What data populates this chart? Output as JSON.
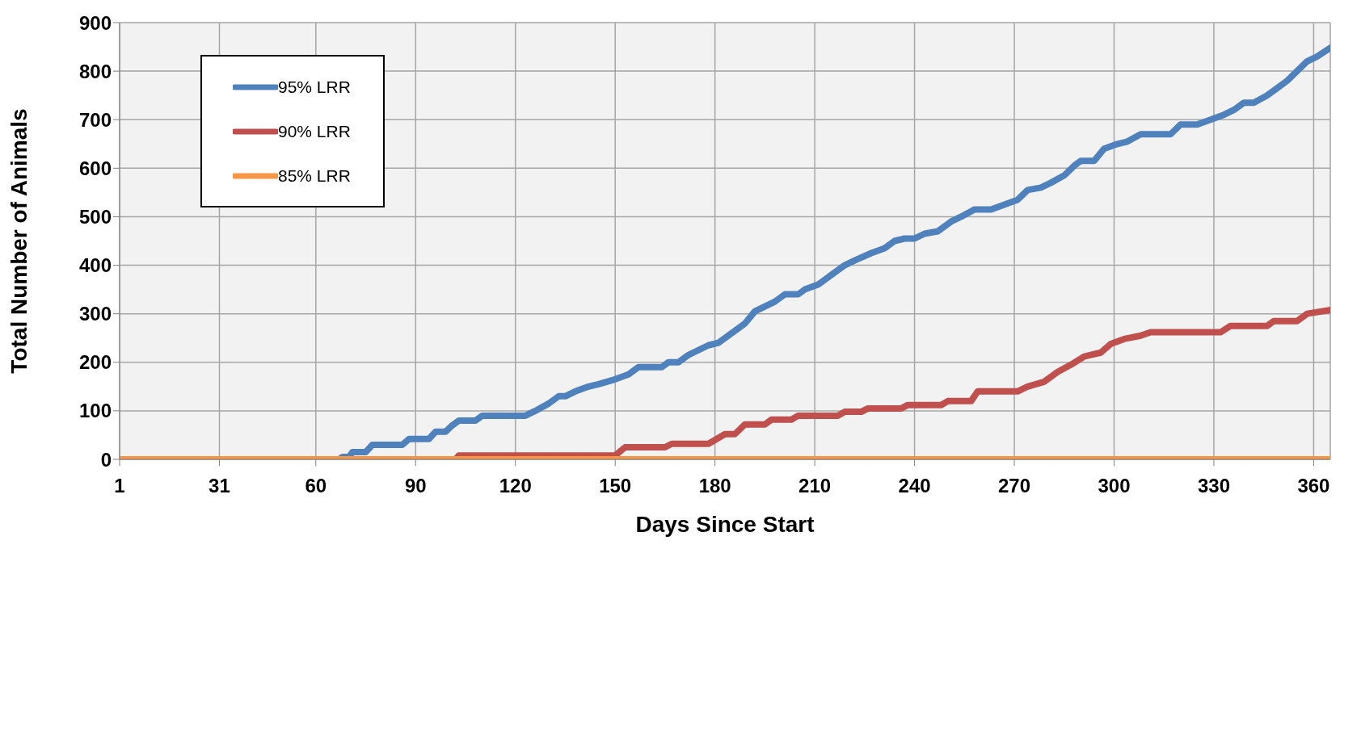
{
  "chart_data": {
    "type": "line",
    "xlabel": "Days Since Start",
    "ylabel": "Total Number of Animals",
    "xlim": [
      1,
      365
    ],
    "xticks": [
      1,
      31,
      60,
      90,
      120,
      150,
      180,
      210,
      240,
      270,
      300,
      330,
      360
    ],
    "ylim": [
      0,
      900
    ],
    "yticks": [
      0,
      100,
      200,
      300,
      400,
      500,
      600,
      700,
      800,
      900
    ],
    "grid": true,
    "legend": "top left",
    "marker": "none",
    "line_style": "solid",
    "series": [
      {
        "name": "95% LRR",
        "color": "#4f81bd",
        "x": [
          1,
          67,
          68,
          70,
          71,
          75,
          77,
          79,
          86,
          88,
          94,
          96,
          97,
          99,
          101,
          103,
          108,
          110,
          123,
          126,
          130,
          133,
          135,
          138,
          142,
          145,
          150,
          154,
          157,
          164,
          166,
          169,
          172,
          175,
          178,
          181,
          184,
          186,
          189,
          192,
          195,
          198,
          201,
          205,
          207,
          211,
          215,
          219,
          222,
          227,
          231,
          234,
          237,
          240,
          243,
          247,
          251,
          254,
          258,
          263,
          267,
          271,
          274,
          278,
          281,
          285,
          288,
          290,
          294,
          297,
          301,
          304,
          308,
          317,
          320,
          325,
          329,
          333,
          336,
          339,
          342,
          346,
          349,
          352,
          355,
          358,
          361,
          365
        ],
        "values": [
          0,
          0,
          5,
          5,
          15,
          15,
          30,
          30,
          30,
          42,
          42,
          57,
          57,
          57,
          70,
          80,
          80,
          90,
          90,
          100,
          115,
          130,
          130,
          140,
          150,
          155,
          165,
          175,
          190,
          190,
          200,
          200,
          215,
          225,
          235,
          240,
          255,
          265,
          280,
          305,
          315,
          325,
          340,
          340,
          350,
          360,
          380,
          400,
          410,
          425,
          435,
          450,
          455,
          455,
          465,
          470,
          490,
          500,
          515,
          515,
          525,
          535,
          555,
          560,
          570,
          585,
          605,
          615,
          615,
          640,
          650,
          655,
          670,
          670,
          690,
          690,
          700,
          710,
          720,
          735,
          735,
          750,
          765,
          780,
          800,
          820,
          830,
          848
        ]
      },
      {
        "name": "90% LRR",
        "color": "#c0504d",
        "x": [
          1,
          102,
          103,
          150,
          153,
          165,
          167,
          178,
          180,
          183,
          186,
          189,
          195,
          197,
          203,
          205,
          217,
          219,
          224,
          226,
          236,
          238,
          248,
          250,
          257,
          259,
          271,
          274,
          279,
          283,
          287,
          291,
          296,
          299,
          303,
          308,
          311,
          332,
          335,
          346,
          348,
          355,
          358,
          365
        ],
        "values": [
          0,
          0,
          8,
          8,
          25,
          25,
          32,
          32,
          40,
          52,
          52,
          72,
          72,
          82,
          82,
          90,
          90,
          98,
          98,
          105,
          105,
          112,
          112,
          120,
          120,
          140,
          140,
          150,
          160,
          180,
          195,
          212,
          220,
          238,
          248,
          255,
          262,
          262,
          275,
          275,
          285,
          285,
          300,
          308
        ]
      },
      {
        "name": "85% LRR",
        "color": "#f79646",
        "x": [
          1,
          365
        ],
        "values": [
          0,
          0
        ]
      }
    ]
  }
}
